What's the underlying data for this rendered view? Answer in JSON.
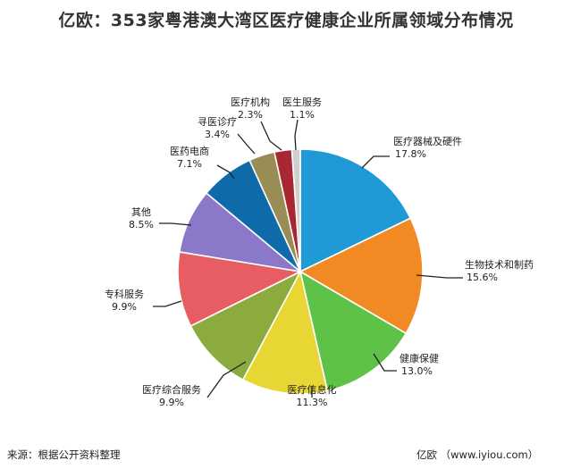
{
  "chart_data": {
    "type": "pie",
    "title": "亿欧：353家粤港澳大湾区医疗健康企业所属领域分布情况",
    "slices": [
      {
        "name": "医疗器械及硬件",
        "value": 17.8,
        "label": "17.8%",
        "color": "#1f9ad6"
      },
      {
        "name": "生物技术和制药",
        "value": 15.6,
        "label": "15.6%",
        "color": "#f28a24"
      },
      {
        "name": "健康保健",
        "value": 13.0,
        "label": "13.0%",
        "color": "#5ec148"
      },
      {
        "name": "医疗信息化",
        "value": 11.3,
        "label": "11.3%",
        "color": "#e8d634"
      },
      {
        "name": "医疗综合服务",
        "value": 9.9,
        "label": "9.9%",
        "color": "#8bab3e"
      },
      {
        "name": "专科服务",
        "value": 9.9,
        "label": "9.9%",
        "color": "#e85d63"
      },
      {
        "name": "其他",
        "value": 8.5,
        "label": "8.5%",
        "color": "#8b78c9"
      },
      {
        "name": "医药电商",
        "value": 7.1,
        "label": "7.1%",
        "color": "#0e6aa8"
      },
      {
        "name": "寻医诊疗",
        "value": 3.4,
        "label": "3.4%",
        "color": "#9a8c55"
      },
      {
        "name": "医疗机构",
        "value": 2.3,
        "label": "2.3%",
        "color": "#a82831"
      },
      {
        "name": "医生服务",
        "value": 1.1,
        "label": "1.1%",
        "color": "#cfcfcf"
      }
    ],
    "legend": "none",
    "grid": false
  },
  "footer": {
    "source": "来源：根据公开资料整理",
    "brand": "亿欧 （www.iyiou.com）"
  }
}
